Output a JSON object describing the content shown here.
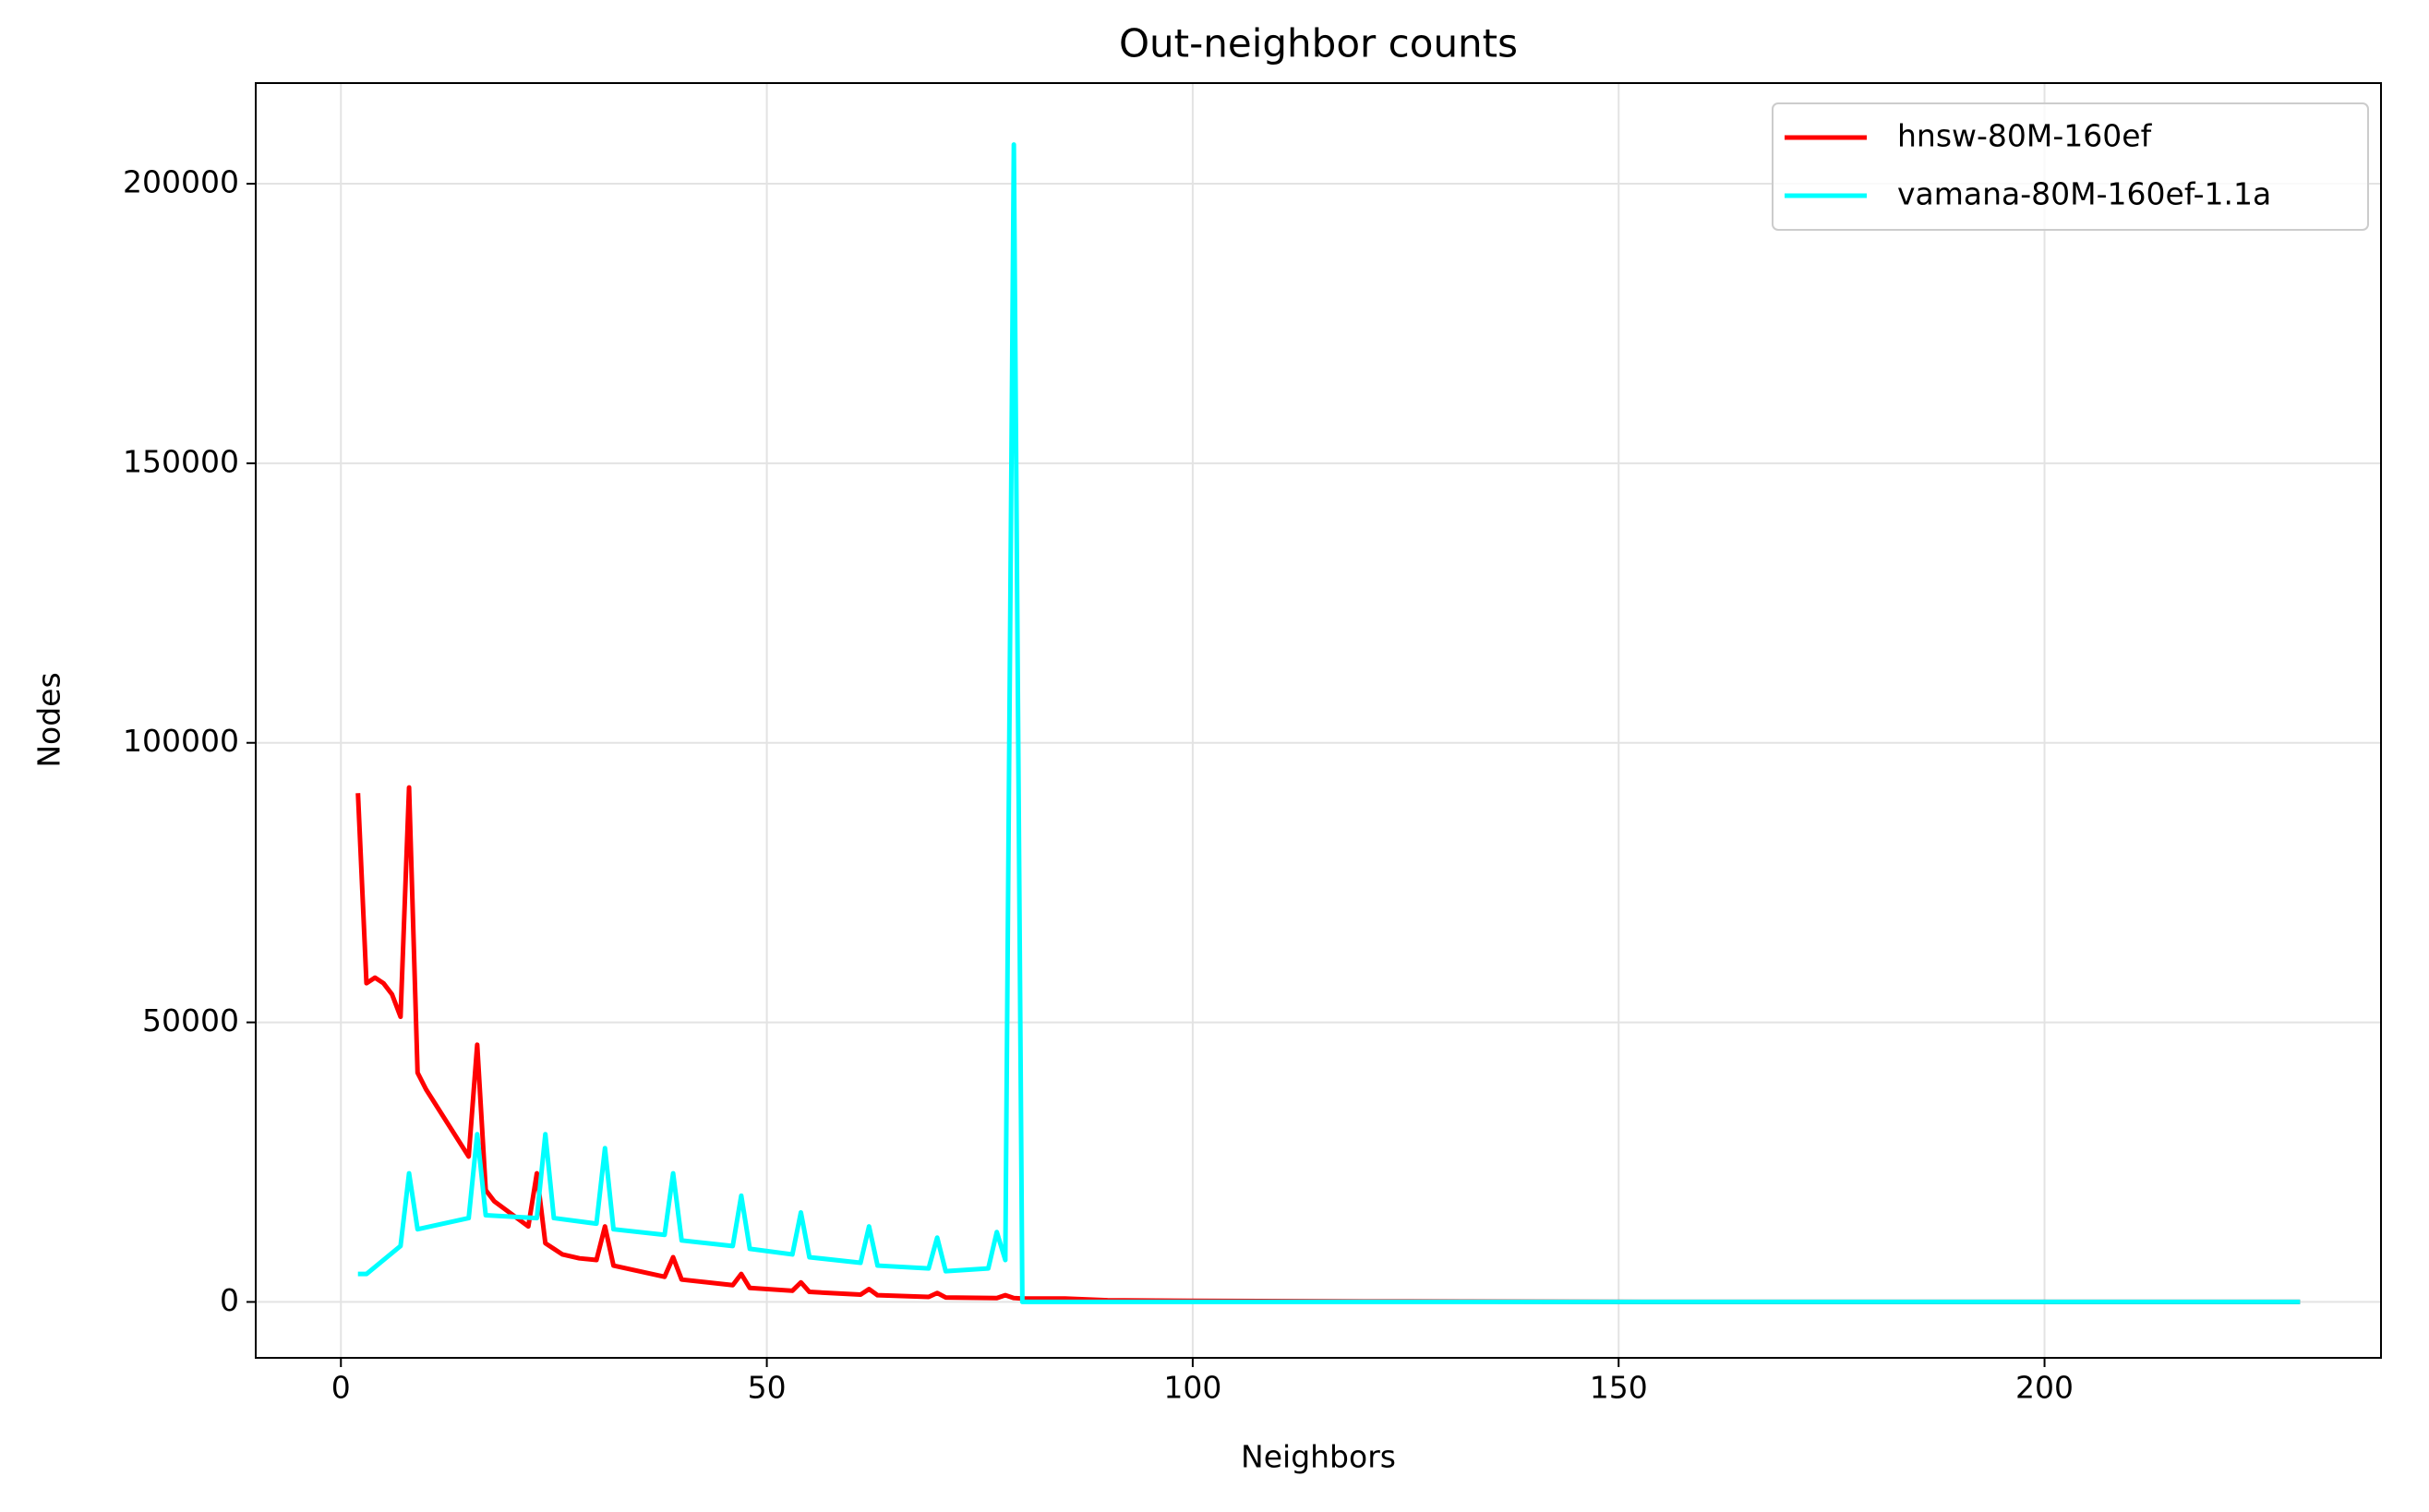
{
  "chart_data": {
    "type": "line",
    "title": "Out-neighbor counts",
    "x_label": "Neighbors",
    "y_label": "Nodes",
    "xlim": [
      -10,
      239.5
    ],
    "ylim": [
      -10000,
      218000
    ],
    "xticks": [
      0,
      50,
      100,
      150,
      200
    ],
    "yticks": [
      0,
      50000,
      100000,
      150000,
      200000
    ],
    "grid": true,
    "legend": "upper right",
    "series": [
      {
        "name": "hnsw-80M-160ef",
        "color": "#ff0000",
        "x": [
          2,
          3,
          4,
          5,
          6,
          7,
          8,
          9,
          10,
          15,
          16,
          17,
          18,
          22,
          23,
          24,
          25,
          26,
          28,
          30,
          31,
          32,
          38,
          39,
          40,
          46,
          47,
          48,
          53,
          54,
          55,
          61,
          62,
          63,
          69,
          70,
          71,
          77,
          78,
          79,
          80,
          85,
          90,
          100,
          120,
          160,
          230
        ],
        "values": [
          91000,
          57000,
          58000,
          57000,
          55000,
          51000,
          92000,
          41000,
          38000,
          26000,
          46000,
          20000,
          18000,
          13500,
          23000,
          10500,
          9500,
          8500,
          7800,
          7500,
          13500,
          6500,
          4500,
          8000,
          4000,
          3000,
          5000,
          2500,
          2000,
          3500,
          1800,
          1300,
          2300,
          1200,
          900,
          1600,
          800,
          700,
          1200,
          700,
          600,
          600,
          300,
          200,
          100,
          0,
          0
        ]
      },
      {
        "name": "vamana-80M-160ef-1.1a",
        "color": "#00ffff",
        "x": [
          2,
          3,
          7,
          8,
          9,
          15,
          16,
          17,
          23,
          24,
          25,
          30,
          31,
          32,
          38,
          39,
          40,
          46,
          47,
          48,
          53,
          54,
          55,
          61,
          62,
          63,
          69,
          70,
          71,
          76,
          77,
          78,
          79,
          80,
          81,
          230
        ],
        "values": [
          5000,
          5000,
          10000,
          23000,
          13000,
          15000,
          30000,
          15500,
          15000,
          30000,
          15000,
          14000,
          27500,
          13000,
          12000,
          23000,
          11000,
          10000,
          19000,
          9500,
          8500,
          16000,
          8000,
          7000,
          13500,
          6500,
          6000,
          11500,
          5500,
          6000,
          12500,
          7500,
          207000,
          0,
          0,
          0
        ]
      }
    ]
  }
}
